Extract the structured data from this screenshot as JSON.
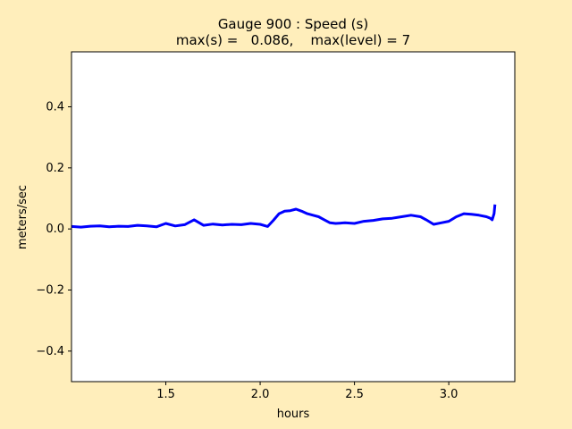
{
  "chart_data": {
    "type": "line",
    "title_line1": "Gauge 900 : Speed (s)",
    "title_line2": "max(s) =   0.086,    max(level) = 7",
    "xlabel": "hours",
    "ylabel": "meters/sec",
    "xlim": [
      1.0,
      3.35
    ],
    "ylim": [
      -0.5,
      0.58
    ],
    "xticks": [
      1.5,
      2.0,
      2.5,
      3.0
    ],
    "xtick_labels": [
      "1.5",
      "2.0",
      "2.5",
      "3.0"
    ],
    "yticks": [
      -0.4,
      -0.2,
      0.0,
      0.2,
      0.4
    ],
    "ytick_labels": [
      "−0.4",
      "−0.2",
      "0.0",
      "0.2",
      "0.4"
    ],
    "grid": false,
    "series": [
      {
        "color": "#0000ff",
        "x": [
          1.0,
          1.05,
          1.1,
          1.15,
          1.2,
          1.25,
          1.3,
          1.35,
          1.4,
          1.45,
          1.5,
          1.55,
          1.6,
          1.65,
          1.7,
          1.75,
          1.8,
          1.85,
          1.9,
          1.95,
          2.0,
          2.04,
          2.07,
          2.1,
          2.13,
          2.16,
          2.19,
          2.22,
          2.25,
          2.28,
          2.31,
          2.34,
          2.37,
          2.4,
          2.45,
          2.5,
          2.55,
          2.6,
          2.65,
          2.7,
          2.75,
          2.8,
          2.85,
          2.88,
          2.92,
          2.96,
          3.0,
          3.04,
          3.08,
          3.12,
          3.16,
          3.2,
          3.22,
          3.23,
          3.24,
          3.245
        ],
        "y": [
          0.008,
          0.006,
          0.009,
          0.01,
          0.007,
          0.009,
          0.008,
          0.012,
          0.01,
          0.007,
          0.018,
          0.01,
          0.014,
          0.03,
          0.012,
          0.016,
          0.013,
          0.015,
          0.014,
          0.018,
          0.015,
          0.008,
          0.028,
          0.05,
          0.058,
          0.06,
          0.065,
          0.058,
          0.05,
          0.045,
          0.04,
          0.03,
          0.02,
          0.018,
          0.02,
          0.018,
          0.025,
          0.028,
          0.033,
          0.035,
          0.04,
          0.045,
          0.04,
          0.03,
          0.015,
          0.02,
          0.025,
          0.04,
          0.05,
          0.048,
          0.045,
          0.04,
          0.035,
          0.03,
          0.05,
          0.08
        ]
      }
    ]
  }
}
